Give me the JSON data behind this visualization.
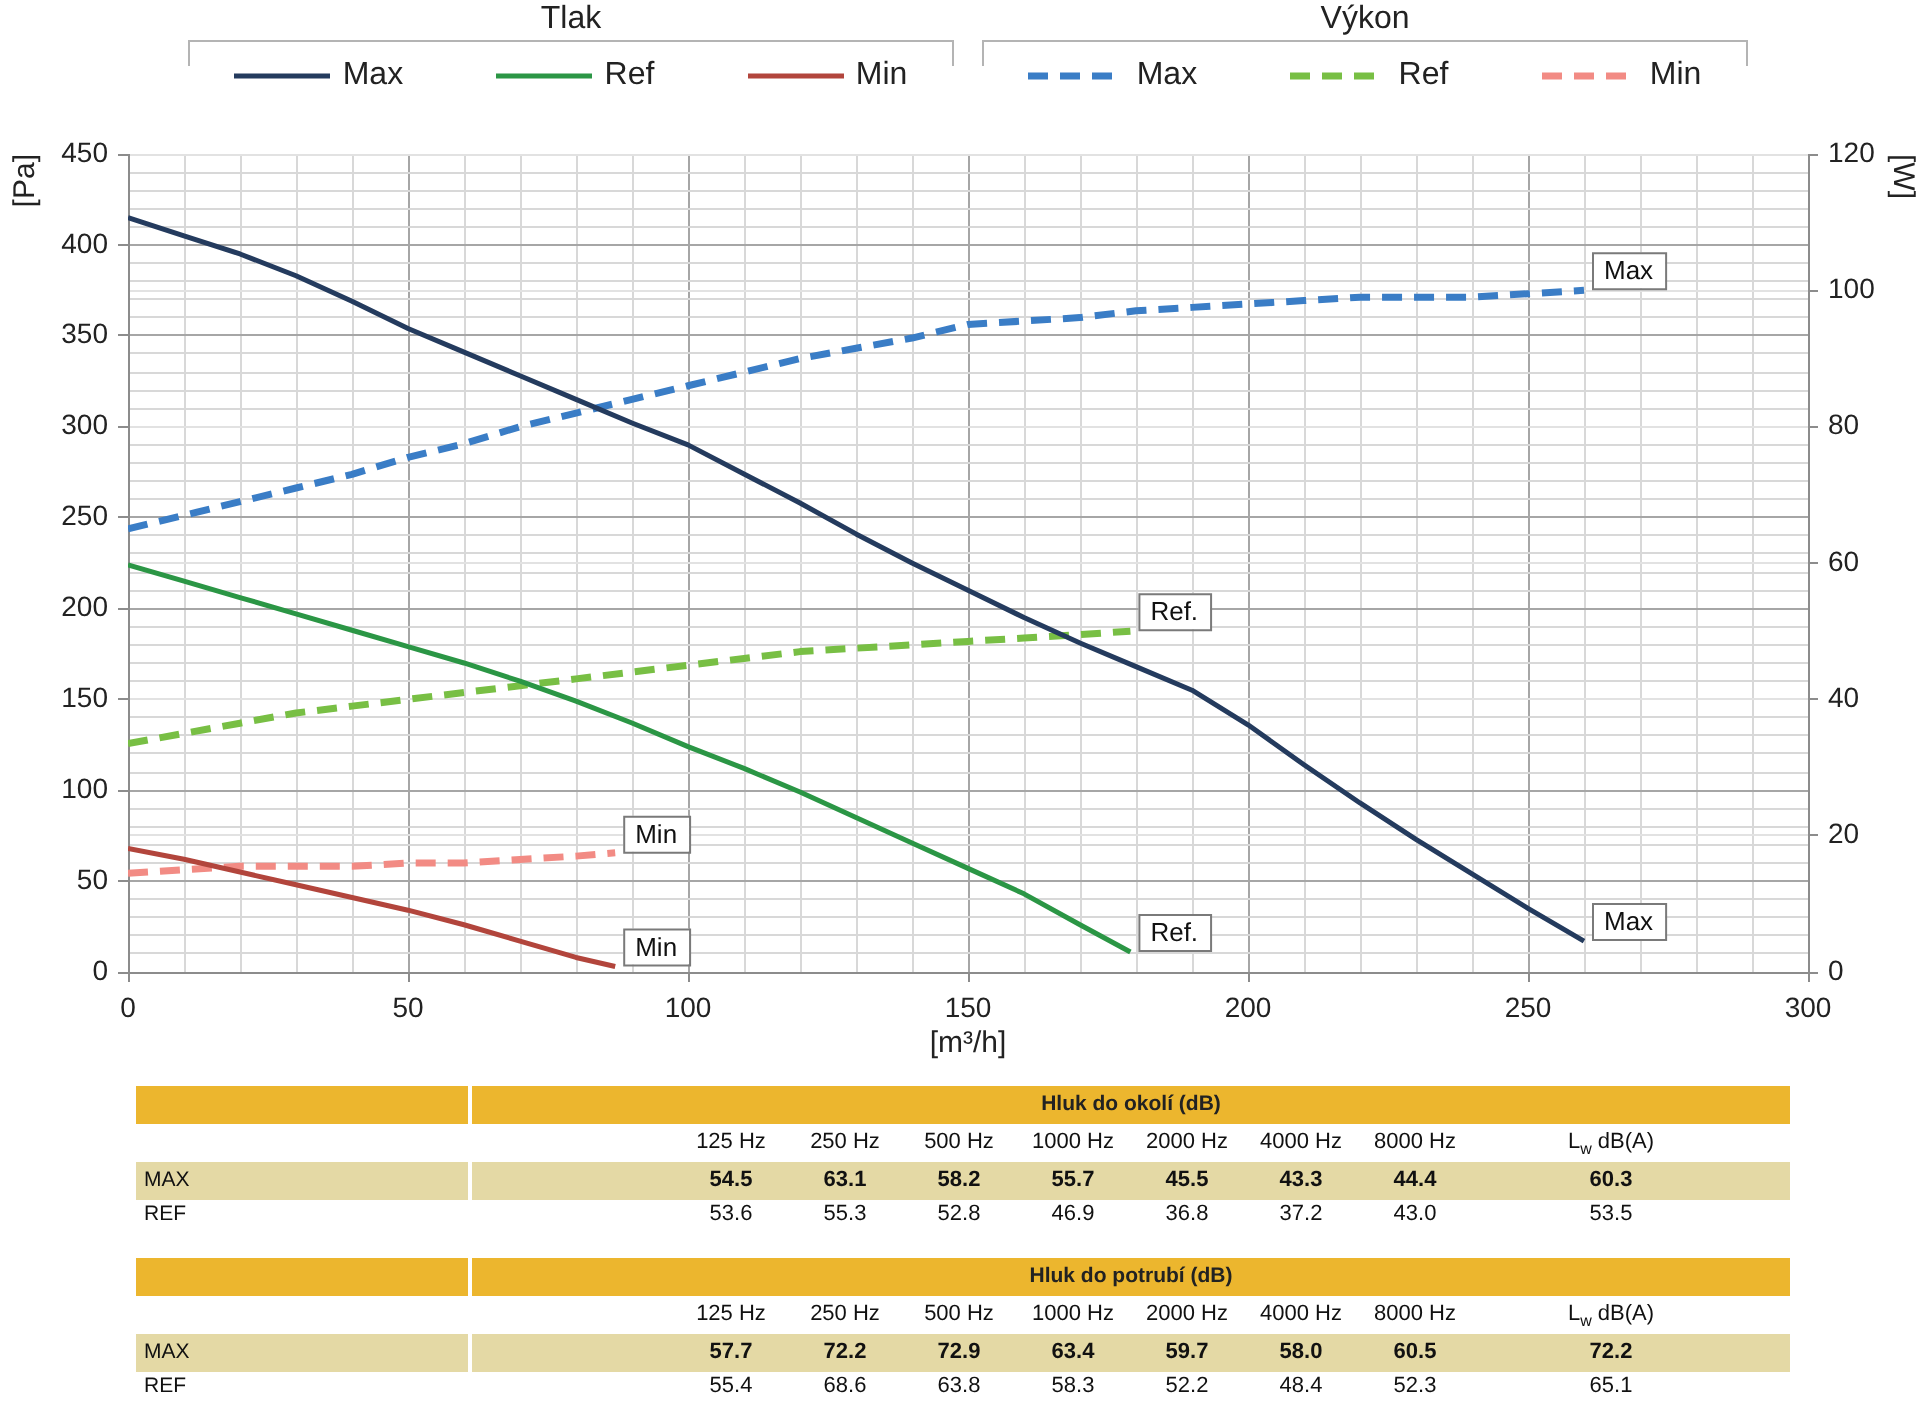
{
  "chart_data": [
    {
      "type": "line",
      "xlabel": "[m³/h]",
      "ylabel": "[Pa]",
      "y2label": "[W]",
      "xlim": [
        0,
        300
      ],
      "xticks": [
        0,
        {
          "value": 10,
          "label": null
        },
        {
          "value": 20,
          "label": null
        },
        {
          "value": 30,
          "label": null
        },
        {
          "value": 40,
          "label": null
        },
        50,
        {
          "value": 60,
          "label": null
        },
        {
          "value": 70,
          "label": null
        },
        {
          "value": 80,
          "label": null
        },
        {
          "value": 90,
          "label": null
        },
        100,
        {
          "value": 110,
          "label": null
        },
        {
          "value": 120,
          "label": null
        },
        {
          "value": 130,
          "label": null
        },
        {
          "value": 140,
          "label": null
        },
        150,
        {
          "value": 160,
          "label": null
        },
        {
          "value": 170,
          "label": null
        },
        {
          "value": 180,
          "label": null
        },
        {
          "value": 190,
          "label": null
        },
        200,
        {
          "value": 210,
          "label": null
        },
        {
          "value": 220,
          "label": null
        },
        {
          "value": 230,
          "label": null
        },
        {
          "value": 240,
          "label": null
        },
        250,
        {
          "value": 260,
          "label": null
        },
        {
          "value": 270,
          "label": null
        },
        {
          "value": 280,
          "label": null
        },
        {
          "value": 290,
          "label": null
        },
        300
      ],
      "ylim": [
        0,
        450
      ],
      "yticks": [
        0,
        {
          "value": 10,
          "label": null
        },
        {
          "value": 20,
          "label": null
        },
        {
          "value": 30,
          "label": null
        },
        {
          "value": 40,
          "label": null
        },
        50,
        {
          "value": 60,
          "label": null
        },
        {
          "value": 70,
          "label": null
        },
        {
          "value": 80,
          "label": null
        },
        {
          "value": 90,
          "label": null
        },
        100,
        {
          "value": 110,
          "label": null
        },
        {
          "value": 120,
          "label": null
        },
        {
          "value": 130,
          "label": null
        },
        {
          "value": 140,
          "label": null
        },
        150,
        {
          "value": 160,
          "label": null
        },
        {
          "value": 170,
          "label": null
        },
        {
          "value": 180,
          "label": null
        },
        {
          "value": 190,
          "label": null
        },
        200,
        {
          "value": 210,
          "label": null
        },
        {
          "value": 220,
          "label": null
        },
        {
          "value": 230,
          "label": null
        },
        {
          "value": 240,
          "label": null
        },
        250,
        {
          "value": 260,
          "label": null
        },
        {
          "value": 270,
          "label": null
        },
        {
          "value": 280,
          "label": null
        },
        {
          "value": 290,
          "label": null
        },
        300,
        {
          "value": 310,
          "label": null
        },
        {
          "value": 320,
          "label": null
        },
        {
          "value": 330,
          "label": null
        },
        {
          "value": 340,
          "label": null
        },
        350,
        {
          "value": 360,
          "label": null
        },
        {
          "value": 370,
          "label": null
        },
        {
          "value": 380,
          "label": null
        },
        {
          "value": 390,
          "label": null
        },
        400,
        {
          "value": 410,
          "label": null
        },
        {
          "value": 420,
          "label": null
        },
        {
          "value": 430,
          "label": null
        },
        {
          "value": 440,
          "label": null
        },
        450
      ],
      "y2lim": [
        0,
        120
      ],
      "y2ticks": [
        0,
        20,
        40,
        60,
        80,
        100,
        120
      ],
      "grid": true,
      "legend": "top",
      "marker": "none",
      "line_style": "solid",
      "series": [
        {
          "name": "Max",
          "color": "#243b5e",
          "x": [
            0,
            10,
            20,
            30,
            40,
            50,
            60,
            70,
            80,
            90,
            100,
            110,
            120,
            130,
            140,
            150,
            160,
            170,
            180,
            190,
            200,
            210,
            220,
            230,
            240,
            250,
            260
          ],
          "values": [
            415,
            405,
            395,
            383,
            369,
            354,
            341,
            328,
            315,
            302,
            290,
            274,
            258,
            241,
            225,
            210,
            195,
            181,
            168,
            155,
            136,
            114,
            93,
            73,
            54,
            35,
            17
          ]
        },
        {
          "name": "Ref",
          "color": "#2b9645",
          "x": [
            0,
            10,
            20,
            30,
            40,
            50,
            60,
            70,
            80,
            90,
            100,
            110,
            120,
            130,
            140,
            150,
            160,
            170,
            179
          ],
          "values": [
            224,
            215,
            206,
            197,
            188,
            179,
            170,
            160,
            149,
            137,
            124,
            112,
            99,
            85,
            71,
            57,
            43,
            26,
            11
          ]
        },
        {
          "name": "Min",
          "color": "#b2453c",
          "x": [
            0,
            10,
            20,
            30,
            40,
            50,
            60,
            70,
            80,
            87
          ],
          "values": [
            68,
            62,
            55,
            48,
            41,
            34,
            26,
            17,
            8,
            3
          ]
        },
        {
          "name": "Max",
          "color": "#3a7dc6",
          "axis": "y2",
          "line_style": "dashed",
          "x": [
            0,
            10,
            20,
            30,
            40,
            50,
            60,
            70,
            80,
            90,
            100,
            110,
            120,
            130,
            140,
            150,
            160,
            170,
            180,
            190,
            200,
            210,
            220,
            230,
            240,
            250,
            260
          ],
          "values": [
            65,
            67,
            69,
            71,
            73,
            75.5,
            77.5,
            80,
            82,
            84,
            86,
            88,
            90,
            91.5,
            93,
            95,
            95.5,
            96,
            97,
            97.5,
            98,
            98.5,
            99,
            99,
            99,
            99.5,
            100
          ]
        },
        {
          "name": "Ref",
          "color": "#78bf44",
          "axis": "y2",
          "line_style": "dashed",
          "x": [
            0,
            10,
            20,
            30,
            40,
            50,
            60,
            70,
            80,
            90,
            100,
            110,
            120,
            130,
            140,
            150,
            160,
            170,
            179
          ],
          "values": [
            33.5,
            35,
            36.5,
            38,
            39,
            40,
            41,
            42,
            43,
            44,
            45,
            46,
            47,
            47.5,
            48,
            48.5,
            49,
            49.5,
            50
          ]
        },
        {
          "name": "Min",
          "color": "#f28b84",
          "axis": "y2",
          "line_style": "dashed",
          "x": [
            0,
            10,
            20,
            30,
            40,
            50,
            60,
            70,
            80,
            87
          ],
          "values": [
            14.5,
            15,
            15.5,
            15.5,
            15.5,
            16,
            16,
            16.5,
            17,
            17.5
          ]
        }
      ],
      "annotations": [
        "Tlak",
        "Výkon",
        {
          "text": "Max",
          "x": 260,
          "y": 375
        },
        {
          "text": "Max",
          "x": 260,
          "y": 17
        },
        {
          "text": "Ref.",
          "x": 179,
          "y": 187.5
        },
        {
          "text": "Ref.",
          "x": 179,
          "y": 11
        },
        {
          "text": "Min",
          "x": 87,
          "y": 65
        },
        {
          "text": "Min",
          "x": 87,
          "y": 3
        }
      ]
    },
    {
      "type": "other",
      "title": "Hluk do okolí (dB)",
      "categories": [
        "125 Hz",
        "250 Hz",
        "500 Hz",
        "1000 Hz",
        "2000 Hz",
        "4000 Hz",
        "8000 Hz",
        "L$_{w}$ dB(A)"
      ],
      "series": [
        {
          "name": "MAX",
          "values": [
            54.5,
            63.1,
            58.2,
            55.7,
            45.5,
            43.3,
            44.4,
            60.3
          ],
          "value_labels": [
            "54.5",
            "63.1",
            "58.2",
            "55.7",
            "45.5",
            "43.3",
            "44.4",
            "60.3"
          ]
        },
        {
          "name": "REF",
          "values": [
            53.6,
            55.3,
            52.8,
            46.9,
            36.8,
            37.2,
            43.0,
            53.5
          ],
          "value_labels": [
            "53.6",
            "55.3",
            "52.8",
            "46.9",
            "36.8",
            "37.2",
            "43.0",
            "53.5"
          ]
        }
      ]
    },
    {
      "type": "other",
      "title": "Hluk do potrubí (dB)",
      "categories": [
        "125 Hz",
        "250 Hz",
        "500 Hz",
        "1000 Hz",
        "2000 Hz",
        "4000 Hz",
        "8000 Hz",
        "L$_{w}$ dB(A)"
      ],
      "series": [
        {
          "name": "MAX",
          "values": [
            57.7,
            72.2,
            72.9,
            63.4,
            59.7,
            58.0,
            60.5,
            72.2
          ],
          "value_labels": [
            "57.7",
            "72.2",
            "72.9",
            "63.4",
            "59.7",
            "58.0",
            "60.5",
            "72.2"
          ]
        },
        {
          "name": "REF",
          "values": [
            55.4,
            68.6,
            63.8,
            58.3,
            52.2,
            48.4,
            52.3,
            65.1
          ],
          "value_labels": [
            "55.4",
            "68.6",
            "63.8",
            "58.3",
            "52.2",
            "48.4",
            "52.3",
            "65.1"
          ]
        }
      ]
    }
  ]
}
